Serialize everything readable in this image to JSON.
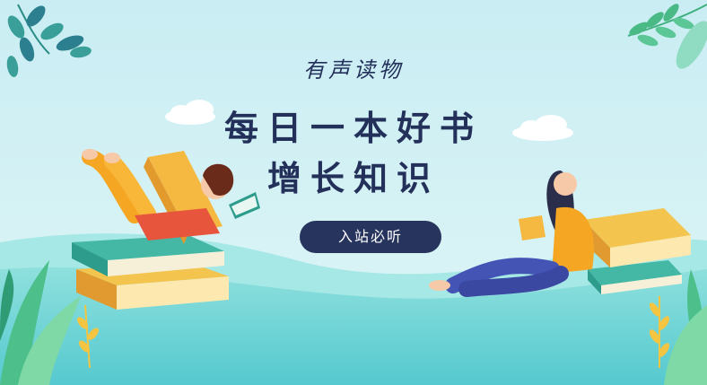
{
  "banner": {
    "subtitle": "有声读物",
    "headline_line1": "每日一本好书",
    "headline_line2": "增长知识",
    "cta_label": "入站必听"
  },
  "colors": {
    "sky": "#cdeef3",
    "text": "#23305a",
    "button": "#27345e",
    "ground": "#6fd6d9",
    "book_orange": "#f5b942",
    "leaf_green": "#3fb98c"
  },
  "illustrations": [
    "leaves-top-left",
    "leaves-top-right",
    "clouds",
    "girl-reading-on-books",
    "woman-reading-sitting",
    "book-stacks",
    "plants-bottom"
  ]
}
